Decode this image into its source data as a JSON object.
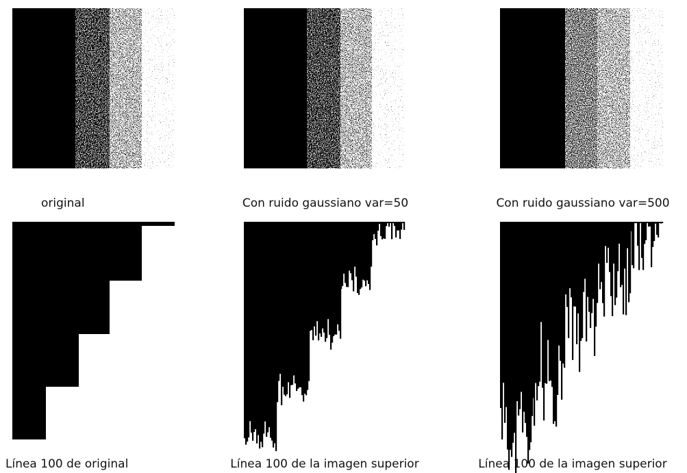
{
  "panels": [
    {
      "caption": "original",
      "profile_caption": "Línea 100 de original"
    },
    {
      "caption": "Con ruido gaussiano var=50",
      "profile_caption": "Línea 100 de la imagen superior"
    },
    {
      "caption": "Con ruido gaussiano var=500",
      "profile_caption": "Línea 100 de la imagen superior"
    }
  ]
}
